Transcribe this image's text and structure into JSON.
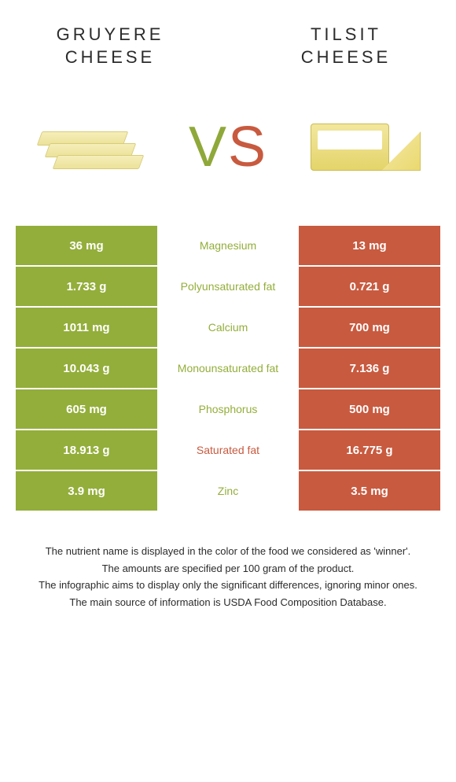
{
  "header": {
    "left_title": "GRUYERE CHEESE",
    "right_title": "TILSIT CHEESE"
  },
  "vs": {
    "v": "V",
    "s": "S"
  },
  "comparison": {
    "colors": {
      "left_bg": "#93ae3a",
      "right_bg": "#c85a3f",
      "left_text": "#93ae3a",
      "right_text": "#c85a3f"
    },
    "rows": [
      {
        "left": "36 mg",
        "label": "Magnesium",
        "right": "13 mg",
        "winner": "left"
      },
      {
        "left": "1.733 g",
        "label": "Polyunsaturated fat",
        "right": "0.721 g",
        "winner": "left"
      },
      {
        "left": "1011 mg",
        "label": "Calcium",
        "right": "700 mg",
        "winner": "left"
      },
      {
        "left": "10.043 g",
        "label": "Monounsaturated fat",
        "right": "7.136 g",
        "winner": "left"
      },
      {
        "left": "605 mg",
        "label": "Phosphorus",
        "right": "500 mg",
        "winner": "left"
      },
      {
        "left": "18.913 g",
        "label": "Saturated fat",
        "right": "16.775 g",
        "winner": "right"
      },
      {
        "left": "3.9 mg",
        "label": "Zinc",
        "right": "3.5 mg",
        "winner": "left"
      }
    ]
  },
  "footer": {
    "line1": "The nutrient name is displayed in the color of the food we considered as 'winner'.",
    "line2": "The amounts are specified per 100 gram of the product.",
    "line3": "The infographic aims to display only the significant differences, ignoring minor ones.",
    "line4": "The main source of information is USDA Food Composition Database."
  }
}
